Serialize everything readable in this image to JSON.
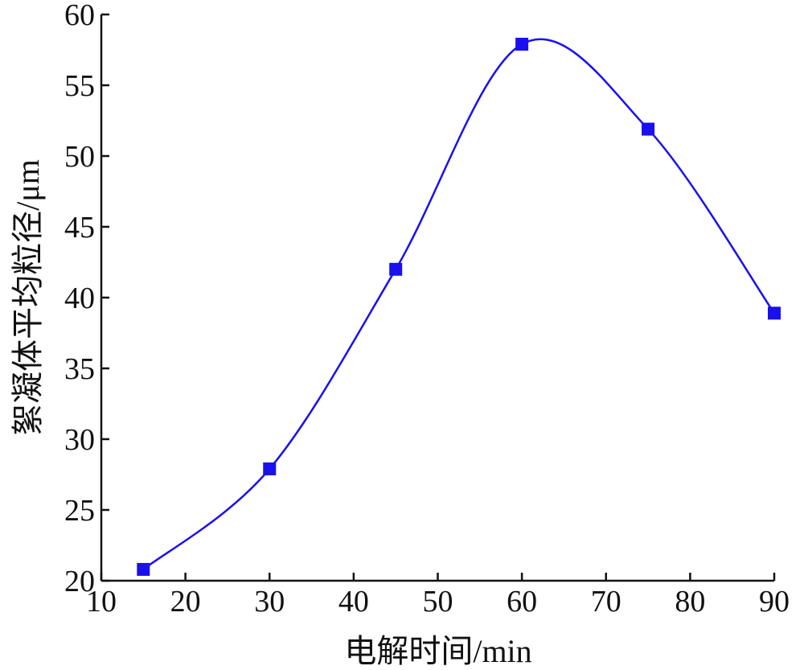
{
  "chart_data": {
    "type": "line",
    "title": "",
    "xlabel": "电解时间/min",
    "ylabel": "絮凝体平均粒径/μm",
    "xlim": [
      10,
      90
    ],
    "ylim": [
      20,
      60
    ],
    "xticks": [
      10,
      20,
      30,
      40,
      50,
      60,
      70,
      80,
      90
    ],
    "yticks": [
      20,
      25,
      30,
      35,
      40,
      45,
      50,
      55,
      60
    ],
    "grid": false,
    "legend": "none",
    "smooth": true,
    "series": [
      {
        "x": [
          15,
          30,
          45,
          60,
          75,
          90
        ],
        "y": [
          20.8,
          27.9,
          42.0,
          57.9,
          51.9,
          38.9
        ],
        "color": "#1a0ff0",
        "marker": "square"
      }
    ]
  }
}
